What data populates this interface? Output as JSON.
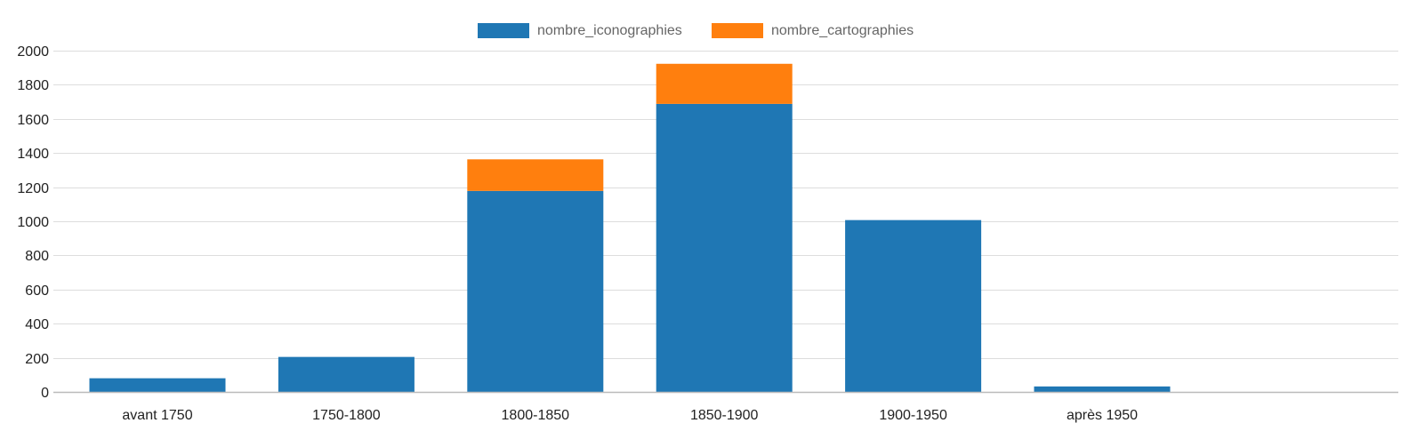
{
  "chart_data": {
    "type": "bar",
    "stacked": true,
    "title": "",
    "xlabel": "",
    "ylabel": "",
    "categories": [
      "avant 1750",
      "1750-1800",
      "1800-1850",
      "1850-1900",
      "1900-1950",
      "après 1950"
    ],
    "series": [
      {
        "name": "nombre_iconographies",
        "color": "#1f77b4",
        "values": [
          80,
          205,
          1178,
          1688,
          1007,
          32
        ]
      },
      {
        "name": "nombre_cartographies",
        "color": "#ff7f0e",
        "values": [
          0,
          0,
          185,
          235,
          0,
          0
        ]
      }
    ],
    "ylim": [
      0,
      2000
    ],
    "yticks": [
      0,
      200,
      400,
      600,
      800,
      1000,
      1200,
      1400,
      1600,
      1800,
      2000
    ],
    "grid": true,
    "legend_position": "top-center",
    "grid_color": "#dddddd",
    "axis_color": "#bbbbbb"
  }
}
